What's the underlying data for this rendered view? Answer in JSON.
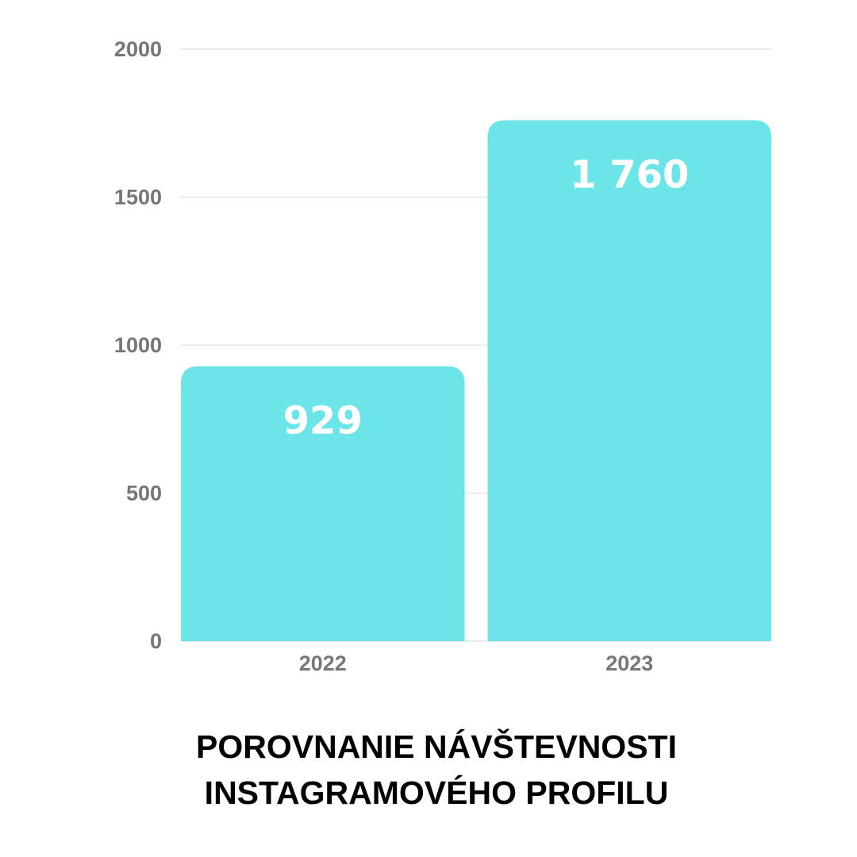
{
  "chart_data": {
    "type": "bar",
    "title": [
      "POROVNANIE NÁVŠTEVNOSTI",
      "INSTAGRAMOVÉHO PROFILU"
    ],
    "xlabel": "",
    "ylabel": "",
    "categories": [
      "2022",
      "2023"
    ],
    "values": [
      929,
      1760
    ],
    "value_labels": [
      "929",
      "1 760"
    ],
    "ylim": [
      0,
      2000
    ],
    "yticks": [
      0,
      500,
      1000,
      1500,
      2000
    ],
    "ytick_labels": [
      "0",
      "500",
      "1000",
      "1500",
      "2000"
    ],
    "grid": true,
    "legend": "none",
    "colors": {
      "bar": "#6ce5e8",
      "grid": "#e6e6e6",
      "tick_text": "#777777",
      "value_text": "#ffffff",
      "title_text": "#000000"
    }
  }
}
